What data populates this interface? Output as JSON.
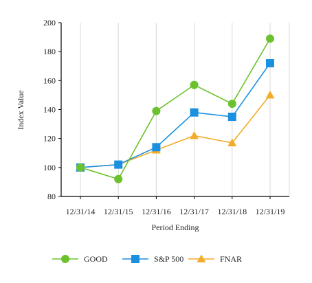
{
  "chart_data": {
    "type": "line",
    "title": "",
    "xlabel": "Period Ending",
    "ylabel": "Index Value",
    "categories": [
      "12/31/14",
      "12/31/15",
      "12/31/16",
      "12/31/17",
      "12/31/18",
      "12/31/19"
    ],
    "ylim": [
      80,
      200
    ],
    "yticks": [
      80,
      100,
      120,
      140,
      160,
      180,
      200
    ],
    "grid": "vertical",
    "legend": "bottom",
    "series": [
      {
        "name": "GOOD",
        "color": "#6cc22e",
        "marker": "circle",
        "values": [
          100,
          92,
          139,
          157,
          144,
          189
        ]
      },
      {
        "name": "S&P 500",
        "color": "#1b8fe0",
        "marker": "square",
        "values": [
          100,
          102,
          114,
          138,
          135,
          172
        ]
      },
      {
        "name": "FNAR",
        "color": "#f2ac2a",
        "marker": "triangle",
        "values": [
          100,
          102,
          112,
          122,
          117,
          150
        ]
      }
    ]
  }
}
